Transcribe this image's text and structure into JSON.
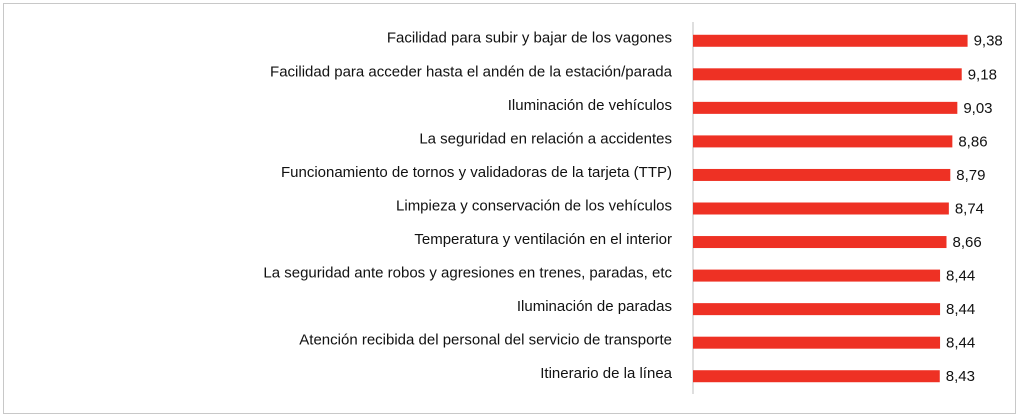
{
  "chart_data": {
    "type": "hbar",
    "categories": [
      "Facilidad para subir y bajar de los vagones",
      "Facilidad para acceder hasta el andén de la estación/parada",
      "Iluminación de vehículos",
      "La seguridad en relación a accidentes",
      "Funcionamiento de tornos y validadoras de la tarjeta (TTP)",
      "Limpieza y conservación de los vehículos",
      "Temperatura y ventilación en el interior",
      "La seguridad ante robos y agresiones en trenes, paradas, etc",
      "Iluminación de paradas",
      "Atención recibida del personal del servicio de transporte",
      "Itinerario de la línea"
    ],
    "values": [
      9.38,
      9.18,
      9.03,
      8.86,
      8.79,
      8.74,
      8.66,
      8.44,
      8.44,
      8.44,
      8.43
    ],
    "value_labels": [
      "9,38",
      "9,18",
      "9,03",
      "8,86",
      "8,79",
      "8,74",
      "8,66",
      "8,44",
      "8,44",
      "8,44",
      "8,43"
    ],
    "color": "#ee3124",
    "xlim": [
      0,
      11
    ]
  }
}
